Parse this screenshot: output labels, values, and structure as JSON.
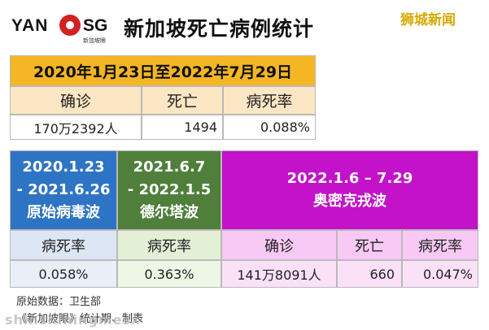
{
  "logo": {
    "left": "YAN",
    "right": "SG",
    "sub": "新加坡眼"
  },
  "title": "新加坡死亡病例统计",
  "brand": "狮城新闻",
  "summary": {
    "period": "2020年1月23日至2022年7月29日",
    "labels": [
      "确诊",
      "死亡",
      "病死率"
    ],
    "values": [
      "170万2392人",
      "1494",
      "0.088%"
    ]
  },
  "waves": [
    {
      "period_lines": [
        "2020.1.23",
        "- 2021.6.26"
      ],
      "name": "原始病毒波",
      "label": "病死率",
      "value": "0.058%",
      "color": "#2e74c4"
    },
    {
      "period_lines": [
        "2021.6.7",
        "- 2022.1.5"
      ],
      "name": "德尔塔波",
      "label": "病死率",
      "value": "0.363%",
      "color": "#4f7f3a"
    },
    {
      "period_lines": [
        "2022.1.6 – 7.29"
      ],
      "name": "奥密克戎波",
      "labels": [
        "确诊",
        "死亡",
        "病死率"
      ],
      "values": [
        "141万8091人",
        "660",
        "0.047%"
      ],
      "color": "#c312c9"
    }
  ],
  "footer": {
    "source": "原始数据：卫生部",
    "credit": "《新加坡眼》统计期、制表"
  },
  "watermark": "shinshiningmesx"
}
